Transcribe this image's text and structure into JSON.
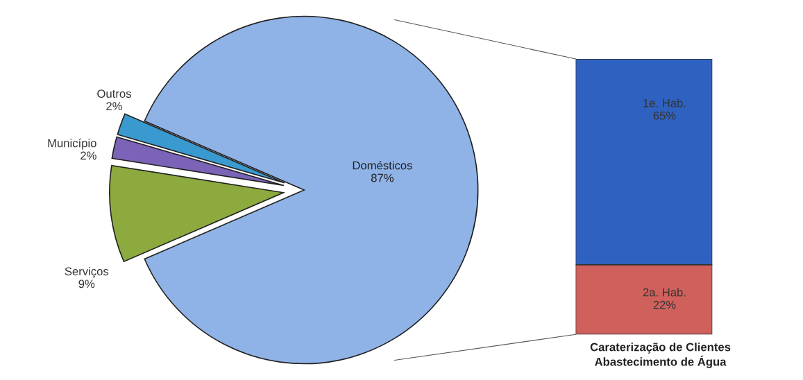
{
  "chart_data": [
    {
      "type": "pie",
      "categories": [
        "Domésticos",
        "Outros",
        "Município",
        "Serviços"
      ],
      "values": [
        87,
        2,
        2,
        9
      ],
      "colors": [
        "#8fb3e6",
        "#3a9ad0",
        "#7b63b8",
        "#8daa3f"
      ],
      "value_labels": [
        "87%",
        "2%",
        "2%",
        "9%"
      ]
    },
    {
      "type": "bar",
      "stacked": true,
      "categories": [
        null
      ],
      "series": [
        {
          "name": "2a. Hab.",
          "color": "#d0605c",
          "values": [
            22
          ],
          "value_labels": [
            "22%"
          ]
        },
        {
          "name": "1e. Hab.",
          "color": "#2f62c0",
          "values": [
            65
          ],
          "value_labels": [
            "65%"
          ]
        }
      ],
      "annotations": [
        "Caraterização de Clientes\nAbastecimento de Água"
      ]
    }
  ]
}
